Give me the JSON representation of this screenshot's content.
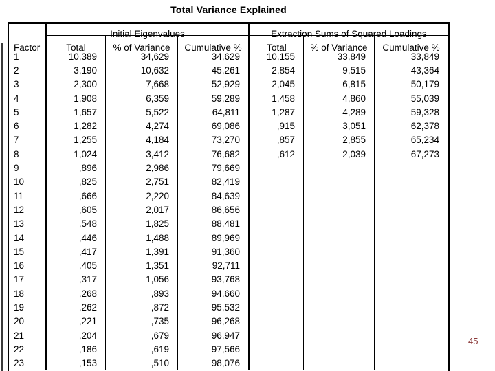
{
  "title": "Total Variance Explained",
  "page_number": "45",
  "colors": {
    "page_number": "#8b3a3a",
    "table_border": "#000000",
    "background": "#ffffff"
  },
  "table": {
    "row_header": "Factor",
    "sections": [
      {
        "label": "Initial Eigenvalues",
        "columns": [
          "Total",
          "% of Variance",
          "Cumulative %"
        ]
      },
      {
        "label": "Extraction Sums of Squared Loadings",
        "columns": [
          "Total",
          "% of Variance",
          "Cumulative %"
        ]
      }
    ],
    "rows": [
      {
        "factor": "1",
        "cells": [
          "10,389",
          "34,629",
          "34,629",
          "10,155",
          "33,849",
          "33,849"
        ]
      },
      {
        "factor": "2",
        "cells": [
          "3,190",
          "10,632",
          "45,261",
          "2,854",
          "9,515",
          "43,364"
        ]
      },
      {
        "factor": "3",
        "cells": [
          "2,300",
          "7,668",
          "52,929",
          "2,045",
          "6,815",
          "50,179"
        ]
      },
      {
        "factor": "4",
        "cells": [
          "1,908",
          "6,359",
          "59,289",
          "1,458",
          "4,860",
          "55,039"
        ]
      },
      {
        "factor": "5",
        "cells": [
          "1,657",
          "5,522",
          "64,811",
          "1,287",
          "4,289",
          "59,328"
        ]
      },
      {
        "factor": "6",
        "cells": [
          "1,282",
          "4,274",
          "69,086",
          ",915",
          "3,051",
          "62,378"
        ]
      },
      {
        "factor": "7",
        "cells": [
          "1,255",
          "4,184",
          "73,270",
          ",857",
          "2,855",
          "65,234"
        ]
      },
      {
        "factor": "8",
        "cells": [
          "1,024",
          "3,412",
          "76,682",
          ",612",
          "2,039",
          "67,273"
        ]
      },
      {
        "factor": "9",
        "cells": [
          ",896",
          "2,986",
          "79,669",
          "",
          "",
          ""
        ]
      },
      {
        "factor": "10",
        "cells": [
          ",825",
          "2,751",
          "82,419",
          "",
          "",
          ""
        ]
      },
      {
        "factor": "11",
        "cells": [
          ",666",
          "2,220",
          "84,639",
          "",
          "",
          ""
        ]
      },
      {
        "factor": "12",
        "cells": [
          ",605",
          "2,017",
          "86,656",
          "",
          "",
          ""
        ]
      },
      {
        "factor": "13",
        "cells": [
          ",548",
          "1,825",
          "88,481",
          "",
          "",
          ""
        ]
      },
      {
        "factor": "14",
        "cells": [
          ",446",
          "1,488",
          "89,969",
          "",
          "",
          ""
        ]
      },
      {
        "factor": "15",
        "cells": [
          ",417",
          "1,391",
          "91,360",
          "",
          "",
          ""
        ]
      },
      {
        "factor": "16",
        "cells": [
          ",405",
          "1,351",
          "92,711",
          "",
          "",
          ""
        ]
      },
      {
        "factor": "17",
        "cells": [
          ",317",
          "1,056",
          "93,768",
          "",
          "",
          ""
        ]
      },
      {
        "factor": "18",
        "cells": [
          ",268",
          ",893",
          "94,660",
          "",
          "",
          ""
        ]
      },
      {
        "factor": "19",
        "cells": [
          ",262",
          ",872",
          "95,532",
          "",
          "",
          ""
        ]
      },
      {
        "factor": "20",
        "cells": [
          ",221",
          ",735",
          "96,268",
          "",
          "",
          ""
        ]
      },
      {
        "factor": "21",
        "cells": [
          ",204",
          ",679",
          "96,947",
          "",
          "",
          ""
        ]
      },
      {
        "factor": "22",
        "cells": [
          ",186",
          ",619",
          "97,566",
          "",
          "",
          ""
        ]
      },
      {
        "factor": "23",
        "cells": [
          ",153",
          ",510",
          "98,076",
          "",
          "",
          ""
        ]
      }
    ]
  }
}
